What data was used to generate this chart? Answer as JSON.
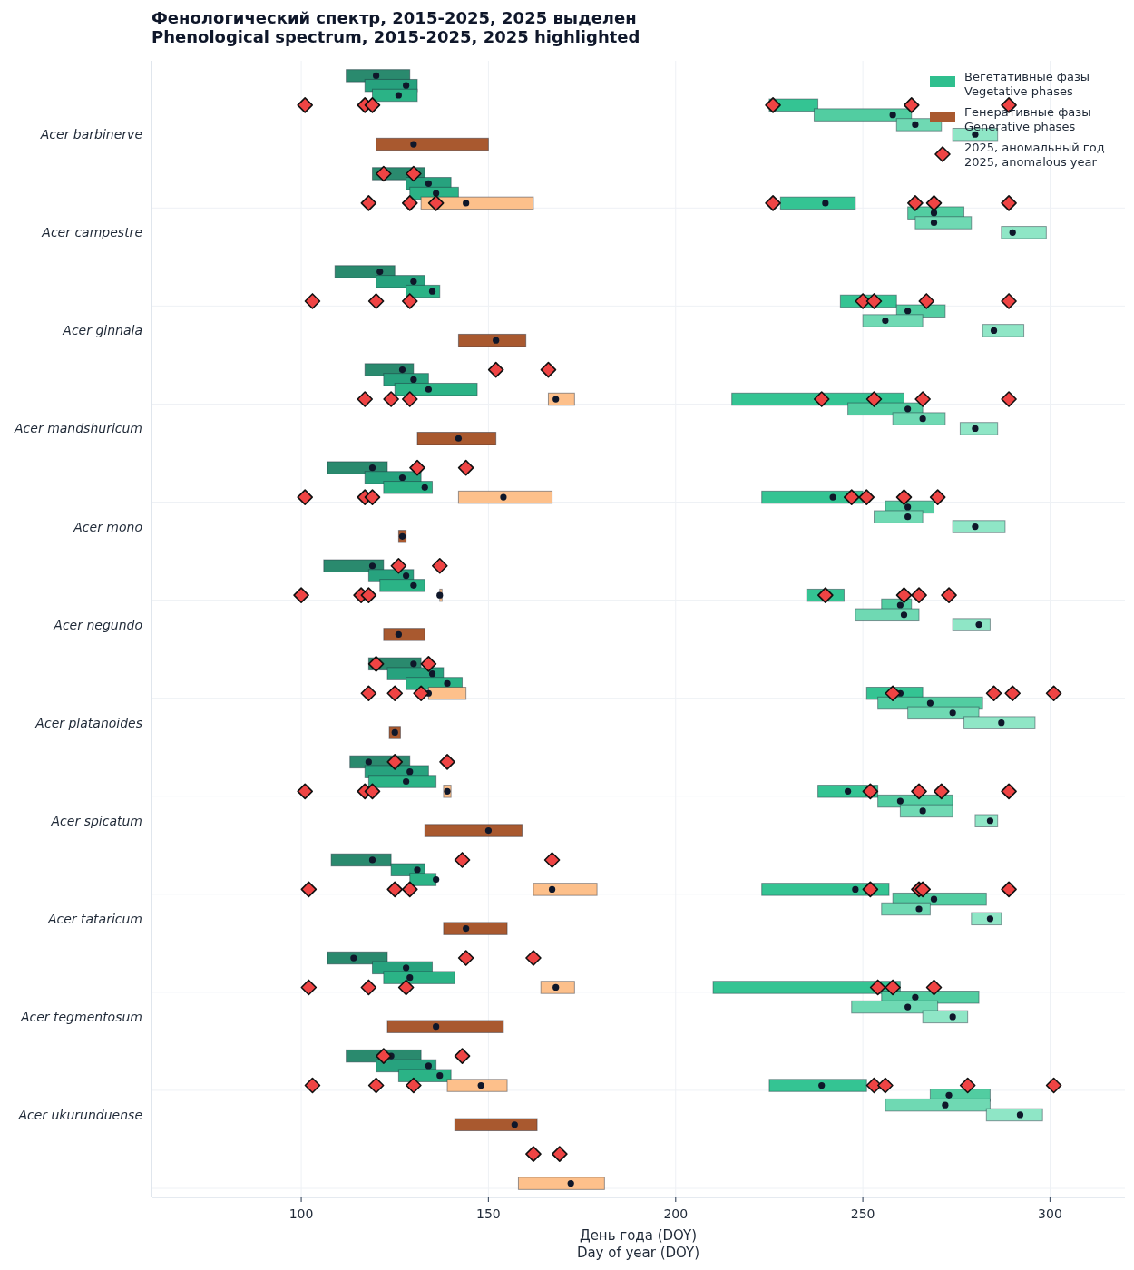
{
  "chart_data": {
    "type": "bar",
    "orientation": "horizontal",
    "title": "Фенологический спектр, 2015-2025, 2025 выделен\nPhenological spectrum, 2015-2025, 2025 highlighted",
    "xlabel": "День года (DOY)\nDay of year (DOY)",
    "xlim": [
      60,
      320
    ],
    "xticks": [
      100,
      150,
      200,
      250,
      300
    ],
    "grid": true,
    "legend": "top right",
    "categories": [
      null,
      null,
      null,
      null,
      null,
      null,
      "Acer barbinerve",
      null,
      null,
      null,
      null,
      null,
      null,
      null,
      null,
      null,
      "Acer campestre",
      null,
      null,
      null,
      null,
      null,
      null,
      null,
      null,
      null,
      "Acer ginnala",
      null,
      null,
      null,
      null,
      null,
      null,
      null,
      null,
      null,
      "Acer mandshuricum",
      null,
      null,
      null,
      null,
      null,
      null,
      null,
      null,
      null,
      "Acer mono",
      null,
      null,
      null,
      null,
      null,
      null,
      null,
      null,
      null,
      "Acer negundo",
      null,
      null,
      null,
      null,
      null,
      null,
      null,
      null,
      null,
      "Acer platanoides",
      null,
      null,
      null,
      null,
      null,
      null,
      null,
      null,
      null,
      "Acer spicatum",
      null,
      null,
      null,
      null,
      null,
      null,
      null,
      null,
      null,
      "Acer tataricum",
      null,
      null,
      null,
      null,
      null,
      null,
      null,
      null,
      null,
      "Acer tegmentosum",
      null,
      null,
      null,
      null,
      null,
      null,
      null,
      null,
      null,
      "Acer ukurunduense",
      null,
      null,
      null,
      null,
      null,
      null,
      null
    ],
    "series": [
      {
        "name": "Вегетативные фазы\nVegetative phases",
        "color": "#2fbf8e",
        "base": [
          112,
          117,
          119,
          225,
          237,
          259,
          274,
          null,
          null,
          null,
          119,
          128,
          129,
          228,
          262,
          264,
          287,
          null,
          null,
          null,
          109,
          120,
          128,
          244,
          259,
          250,
          282,
          null,
          null,
          null,
          117,
          122,
          125,
          215,
          246,
          258,
          276,
          null,
          null,
          null,
          107,
          117,
          122,
          223,
          256,
          253,
          274,
          null,
          null,
          null,
          106,
          118,
          121,
          235,
          255,
          248,
          274,
          null,
          null,
          null,
          118,
          123,
          128,
          251,
          254,
          262,
          277,
          null,
          null,
          null,
          113,
          117,
          118,
          238,
          254,
          260,
          280,
          null,
          null,
          null,
          108,
          124,
          129,
          223,
          258,
          255,
          279,
          null,
          null,
          null,
          107,
          119,
          122,
          210,
          255,
          247,
          266,
          null,
          null,
          null,
          112,
          120,
          126,
          225,
          268,
          256,
          283,
          null,
          null,
          null,
          null,
          null,
          null,
          null
        ],
        "values": [
          17,
          14,
          12,
          13,
          26,
          12,
          12,
          null,
          null,
          null,
          14,
          12,
          13,
          20,
          15,
          15,
          12,
          null,
          null,
          null,
          16,
          13,
          9,
          15,
          13,
          16,
          11,
          null,
          null,
          null,
          13,
          12,
          22,
          46,
          20,
          14,
          10,
          null,
          null,
          null,
          16,
          15,
          13,
          27,
          13,
          13,
          14,
          null,
          null,
          null,
          16,
          12,
          12,
          10,
          8,
          17,
          10,
          null,
          null,
          null,
          14,
          15,
          15,
          15,
          28,
          19,
          19,
          null,
          null,
          null,
          16,
          17,
          18,
          16,
          20,
          14,
          6,
          null,
          null,
          null,
          16,
          9,
          7,
          34,
          25,
          13,
          8,
          null,
          null,
          null,
          16,
          16,
          19,
          50,
          26,
          23,
          12,
          null,
          null,
          null,
          20,
          16,
          14,
          26,
          16,
          28,
          15,
          null,
          null,
          null,
          null,
          null,
          null,
          null
        ],
        "colors": [
          "#2a8a6e",
          "#27a27e",
          "#2bb386",
          "#34c493",
          "#52cda1",
          "#6fd9b3",
          "#8fe6c6",
          null,
          null,
          null,
          "#2a8a6e",
          "#27a27e",
          "#2bb386",
          "#34c493",
          "#52cda1",
          "#6fd9b3",
          "#8fe6c6",
          null,
          null,
          null,
          "#2a8a6e",
          "#27a27e",
          "#2bb386",
          "#34c493",
          "#52cda1",
          "#6fd9b3",
          "#8fe6c6",
          null,
          null,
          null,
          "#2a8a6e",
          "#27a27e",
          "#2bb386",
          "#34c493",
          "#52cda1",
          "#6fd9b3",
          "#8fe6c6",
          null,
          null,
          null,
          "#2a8a6e",
          "#27a27e",
          "#2bb386",
          "#34c493",
          "#52cda1",
          "#6fd9b3",
          "#8fe6c6",
          null,
          null,
          null,
          "#2a8a6e",
          "#27a27e",
          "#2bb386",
          "#34c493",
          "#52cda1",
          "#6fd9b3",
          "#8fe6c6",
          null,
          null,
          null,
          "#2a8a6e",
          "#27a27e",
          "#2bb386",
          "#34c493",
          "#52cda1",
          "#6fd9b3",
          "#8fe6c6",
          null,
          null,
          null,
          "#2a8a6e",
          "#27a27e",
          "#2bb386",
          "#34c493",
          "#52cda1",
          "#6fd9b3",
          "#8fe6c6",
          null,
          null,
          null,
          "#2a8a6e",
          "#27a27e",
          "#2bb386",
          "#34c493",
          "#52cda1",
          "#6fd9b3",
          "#8fe6c6",
          null,
          null,
          null,
          "#2a8a6e",
          "#27a27e",
          "#2bb386",
          "#34c493",
          "#52cda1",
          "#6fd9b3",
          "#8fe6c6",
          null,
          null,
          null,
          "#2a8a6e",
          "#27a27e",
          "#2bb386",
          "#34c493",
          "#52cda1",
          "#6fd9b3",
          "#8fe6c6",
          null,
          null,
          null,
          null,
          null,
          null,
          null
        ]
      },
      {
        "name": "Генеративные фазы\nGenerative phases",
        "color": "#a9592f",
        "base": [
          null,
          null,
          null,
          null,
          null,
          null,
          null,
          120,
          null,
          null,
          null,
          null,
          null,
          132,
          null,
          null,
          null,
          null,
          null,
          null,
          null,
          null,
          null,
          null,
          null,
          null,
          null,
          142,
          null,
          null,
          null,
          null,
          null,
          166,
          null,
          null,
          null,
          131,
          null,
          null,
          null,
          null,
          null,
          142,
          null,
          null,
          null,
          126,
          null,
          null,
          null,
          null,
          null,
          137,
          null,
          null,
          null,
          122,
          null,
          null,
          null,
          null,
          null,
          134,
          null,
          null,
          null,
          123.5,
          null,
          null,
          null,
          null,
          null,
          138,
          null,
          null,
          null,
          133,
          null,
          null,
          null,
          null,
          null,
          162,
          null,
          null,
          null,
          138,
          null,
          null,
          null,
          null,
          null,
          164,
          null,
          null,
          null,
          123,
          null,
          null,
          null,
          null,
          null,
          139,
          null,
          null,
          null,
          141,
          null,
          null,
          null,
          null,
          null,
          158
        ],
        "values": [
          null,
          null,
          null,
          null,
          null,
          null,
          null,
          30,
          null,
          null,
          null,
          null,
          null,
          30,
          null,
          null,
          null,
          null,
          null,
          null,
          null,
          null,
          null,
          null,
          null,
          null,
          null,
          18,
          null,
          null,
          null,
          null,
          null,
          7,
          null,
          null,
          null,
          21,
          null,
          null,
          null,
          null,
          null,
          25,
          null,
          null,
          null,
          2,
          null,
          null,
          null,
          null,
          null,
          0.6,
          null,
          null,
          null,
          11,
          null,
          null,
          null,
          null,
          null,
          10,
          null,
          null,
          null,
          3,
          null,
          null,
          null,
          null,
          null,
          2,
          null,
          null,
          null,
          26,
          null,
          null,
          null,
          null,
          null,
          17,
          null,
          null,
          null,
          17,
          null,
          null,
          null,
          null,
          null,
          9,
          null,
          null,
          null,
          31,
          null,
          null,
          null,
          null,
          null,
          16,
          null,
          null,
          null,
          22,
          null,
          null,
          null,
          null,
          null,
          23
        ],
        "colors": [
          null,
          null,
          null,
          null,
          null,
          null,
          null,
          "#a9592f",
          null,
          null,
          null,
          null,
          null,
          "#fdc08b",
          null,
          null,
          null,
          null,
          null,
          null,
          null,
          null,
          null,
          null,
          null,
          null,
          null,
          "#a9592f",
          null,
          null,
          null,
          null,
          null,
          "#fdc08b",
          null,
          null,
          null,
          "#a9592f",
          null,
          null,
          null,
          null,
          null,
          "#fdc08b",
          null,
          null,
          null,
          "#a9592f",
          null,
          null,
          null,
          null,
          null,
          "#fdc08b",
          null,
          null,
          null,
          "#a9592f",
          null,
          null,
          null,
          null,
          null,
          "#fdc08b",
          null,
          null,
          null,
          "#a9592f",
          null,
          null,
          null,
          null,
          null,
          "#fdc08b",
          null,
          null,
          null,
          "#a9592f",
          null,
          null,
          null,
          null,
          null,
          "#fdc08b",
          null,
          null,
          null,
          "#a9592f",
          null,
          null,
          null,
          null,
          null,
          "#fdc08b",
          null,
          null,
          null,
          "#a9592f",
          null,
          null,
          null,
          null,
          null,
          "#fdc08b",
          null,
          null,
          null,
          "#a9592f",
          null,
          null,
          null,
          null,
          null,
          "#fdc08b"
        ]
      },
      {
        "type": "scatter",
        "marker": "circle",
        "color": "#0f172a",
        "values": [
          120,
          128,
          126,
          null,
          258,
          264,
          280,
          null,
          null,
          null,
          null,
          134,
          136,
          240,
          269,
          269,
          290,
          null,
          null,
          null,
          121,
          130,
          135,
          null,
          262,
          256,
          285,
          null,
          null,
          null,
          127,
          130,
          134,
          null,
          262,
          266,
          280,
          null,
          null,
          null,
          119,
          127,
          133,
          242,
          262,
          262,
          280,
          null,
          null,
          null,
          119,
          128,
          130,
          null,
          260,
          261,
          281,
          null,
          null,
          null,
          130,
          135,
          139,
          260,
          268,
          274,
          287,
          null,
          null,
          null,
          118,
          129,
          128,
          246,
          260,
          266,
          284,
          null,
          null,
          null,
          119,
          131,
          136,
          248,
          269,
          265,
          284,
          null,
          null,
          null,
          114,
          128,
          129,
          null,
          264,
          262,
          274,
          null,
          null,
          null,
          124,
          134,
          137,
          239,
          273,
          272,
          292,
          null,
          null,
          null,
          null,
          null,
          null,
          null
        ]
      },
      {
        "type": "scatter",
        "marker": "circle",
        "color": "#0f172a",
        "values": [
          null,
          null,
          null,
          null,
          null,
          null,
          null,
          130,
          null,
          null,
          null,
          null,
          null,
          144,
          null,
          null,
          null,
          null,
          null,
          null,
          null,
          null,
          null,
          null,
          null,
          null,
          null,
          152,
          null,
          null,
          null,
          null,
          null,
          168,
          null,
          null,
          null,
          142,
          null,
          null,
          null,
          null,
          null,
          154,
          null,
          null,
          null,
          127,
          null,
          null,
          null,
          null,
          null,
          137,
          null,
          null,
          null,
          126,
          null,
          null,
          null,
          null,
          null,
          134,
          null,
          null,
          null,
          125,
          null,
          null,
          null,
          null,
          null,
          139,
          null,
          null,
          null,
          150,
          null,
          null,
          null,
          null,
          null,
          167,
          null,
          null,
          null,
          144,
          null,
          null,
          null,
          null,
          null,
          168,
          null,
          null,
          null,
          136,
          null,
          null,
          null,
          null,
          null,
          148,
          null,
          null,
          null,
          157,
          null,
          null,
          null,
          null,
          null,
          172
        ]
      },
      {
        "type": "scatter",
        "marker": "diamond",
        "name": "2025, аномальный год\n2025, anomalous year",
        "color": "#ef4444",
        "values": [
          null,
          null,
          null,
          101,
          null,
          null,
          null,
          null,
          null,
          null,
          122,
          null,
          null,
          118,
          null,
          null,
          null,
          null,
          null,
          null,
          null,
          null,
          null,
          103,
          null,
          null,
          null,
          null,
          null,
          null,
          152,
          null,
          null,
          117,
          null,
          null,
          null,
          null,
          null,
          null,
          131,
          null,
          null,
          101,
          null,
          null,
          null,
          null,
          null,
          null,
          126,
          null,
          null,
          100,
          null,
          null,
          null,
          null,
          null,
          null,
          120,
          null,
          null,
          118,
          null,
          null,
          null,
          null,
          null,
          null,
          125,
          null,
          null,
          101,
          null,
          null,
          null,
          null,
          null,
          null,
          143,
          null,
          null,
          102,
          null,
          null,
          null,
          null,
          null,
          null,
          144,
          null,
          null,
          102,
          null,
          null,
          null,
          null,
          null,
          null,
          122,
          null,
          null,
          103,
          null,
          null,
          null,
          null,
          null,
          null,
          162,
          null,
          null,
          null
        ]
      },
      {
        "type": "scatter",
        "marker": "diamond",
        "color": "#ef4444",
        "values": [
          null,
          null,
          null,
          117,
          null,
          null,
          null,
          null,
          null,
          null,
          130,
          null,
          null,
          129,
          null,
          null,
          null,
          null,
          null,
          null,
          null,
          null,
          null,
          120,
          null,
          null,
          null,
          null,
          null,
          null,
          166,
          null,
          null,
          124,
          null,
          null,
          null,
          null,
          null,
          null,
          144,
          null,
          null,
          117,
          null,
          null,
          null,
          null,
          null,
          null,
          137,
          null,
          null,
          116,
          null,
          null,
          null,
          null,
          null,
          null,
          134,
          null,
          null,
          125,
          null,
          null,
          null,
          null,
          null,
          null,
          139,
          null,
          null,
          117,
          null,
          null,
          null,
          null,
          null,
          null,
          167,
          null,
          null,
          125,
          null,
          null,
          null,
          null,
          null,
          null,
          162,
          null,
          null,
          118,
          null,
          null,
          null,
          null,
          null,
          null,
          143,
          null,
          null,
          120,
          null,
          null,
          null,
          null,
          null,
          null,
          169,
          null,
          null,
          null
        ]
      },
      {
        "type": "scatter",
        "marker": "diamond",
        "color": "#ef4444",
        "values": [
          null,
          null,
          null,
          119,
          null,
          null,
          null,
          null,
          null,
          null,
          null,
          null,
          null,
          136,
          null,
          null,
          null,
          null,
          null,
          null,
          null,
          null,
          null,
          129,
          null,
          null,
          null,
          null,
          null,
          null,
          null,
          null,
          null,
          129,
          null,
          null,
          null,
          null,
          null,
          null,
          null,
          null,
          null,
          119,
          null,
          null,
          null,
          null,
          null,
          null,
          null,
          null,
          null,
          118,
          null,
          null,
          null,
          null,
          null,
          null,
          null,
          null,
          null,
          132,
          null,
          null,
          null,
          null,
          null,
          null,
          null,
          null,
          null,
          119,
          null,
          null,
          null,
          null,
          null,
          null,
          null,
          null,
          null,
          129,
          null,
          null,
          null,
          null,
          null,
          null,
          null,
          null,
          null,
          128,
          null,
          null,
          null,
          null,
          null,
          null,
          null,
          null,
          null,
          130,
          null,
          null,
          null,
          null,
          null,
          null,
          null,
          null,
          null,
          null
        ]
      },
      {
        "type": "scatter",
        "marker": "diamond",
        "color": "#ef4444",
        "values": [
          null,
          null,
          null,
          226,
          null,
          null,
          null,
          null,
          null,
          null,
          null,
          null,
          null,
          226,
          null,
          null,
          null,
          null,
          null,
          null,
          null,
          null,
          null,
          250,
          null,
          null,
          null,
          null,
          null,
          null,
          null,
          null,
          null,
          239,
          null,
          null,
          null,
          null,
          null,
          null,
          null,
          null,
          null,
          247,
          null,
          null,
          null,
          null,
          null,
          null,
          null,
          null,
          null,
          240,
          null,
          null,
          null,
          null,
          null,
          null,
          null,
          null,
          null,
          258,
          null,
          null,
          null,
          null,
          null,
          null,
          null,
          null,
          null,
          252,
          null,
          null,
          null,
          null,
          null,
          null,
          null,
          null,
          null,
          252,
          null,
          null,
          null,
          null,
          null,
          null,
          null,
          null,
          null,
          254,
          null,
          null,
          null,
          null,
          null,
          null,
          null,
          null,
          null,
          253,
          null,
          null,
          null,
          null,
          null,
          null,
          null,
          null,
          null,
          null
        ]
      },
      {
        "type": "scatter",
        "marker": "diamond",
        "color": "#ef4444",
        "values": [
          null,
          null,
          null,
          263,
          null,
          null,
          null,
          null,
          null,
          null,
          null,
          null,
          null,
          264,
          null,
          null,
          null,
          null,
          null,
          null,
          null,
          null,
          null,
          253,
          null,
          null,
          null,
          null,
          null,
          null,
          null,
          null,
          null,
          253,
          null,
          null,
          null,
          null,
          null,
          null,
          null,
          null,
          null,
          251,
          null,
          null,
          null,
          null,
          null,
          null,
          null,
          null,
          null,
          261,
          null,
          null,
          null,
          null,
          null,
          null,
          null,
          null,
          null,
          285,
          null,
          null,
          null,
          null,
          null,
          null,
          null,
          null,
          null,
          265,
          null,
          null,
          null,
          null,
          null,
          null,
          null,
          null,
          null,
          265,
          null,
          null,
          null,
          null,
          null,
          null,
          null,
          null,
          null,
          258,
          null,
          null,
          null,
          null,
          null,
          null,
          null,
          null,
          null,
          256,
          null,
          null,
          null,
          null,
          null,
          null,
          null,
          null,
          null,
          null
        ]
      },
      {
        "type": "scatter",
        "marker": "diamond",
        "color": "#ef4444",
        "values": [
          null,
          null,
          null,
          289,
          null,
          null,
          null,
          null,
          null,
          null,
          null,
          null,
          null,
          269,
          null,
          null,
          null,
          null,
          null,
          null,
          null,
          null,
          null,
          267,
          null,
          null,
          null,
          null,
          null,
          null,
          null,
          null,
          null,
          266,
          null,
          null,
          null,
          null,
          null,
          null,
          null,
          null,
          null,
          261,
          null,
          null,
          null,
          null,
          null,
          null,
          null,
          null,
          null,
          265,
          null,
          null,
          null,
          null,
          null,
          null,
          null,
          null,
          null,
          290,
          null,
          null,
          null,
          null,
          null,
          null,
          null,
          null,
          null,
          271,
          null,
          null,
          null,
          null,
          null,
          null,
          null,
          null,
          null,
          266,
          null,
          null,
          null,
          null,
          null,
          null,
          null,
          null,
          null,
          269,
          null,
          null,
          null,
          null,
          null,
          null,
          null,
          null,
          null,
          278,
          null,
          null,
          null,
          null,
          null,
          null,
          null,
          null,
          null,
          null
        ]
      },
      {
        "type": "scatter",
        "marker": "diamond",
        "color": "#ef4444",
        "values": [
          null,
          null,
          null,
          null,
          null,
          null,
          null,
          null,
          null,
          null,
          null,
          null,
          null,
          289,
          null,
          null,
          null,
          null,
          null,
          null,
          null,
          null,
          null,
          289,
          null,
          null,
          null,
          null,
          null,
          null,
          null,
          null,
          null,
          289,
          null,
          null,
          null,
          null,
          null,
          null,
          null,
          null,
          null,
          270,
          null,
          null,
          null,
          null,
          null,
          null,
          null,
          null,
          null,
          273,
          null,
          null,
          null,
          null,
          null,
          null,
          null,
          null,
          null,
          301,
          null,
          null,
          null,
          null,
          null,
          null,
          null,
          null,
          null,
          289,
          null,
          null,
          null,
          null,
          null,
          null,
          null,
          null,
          null,
          289,
          null,
          null,
          null,
          null,
          null,
          null,
          null,
          null,
          null,
          null,
          null,
          null,
          null,
          null,
          null,
          null,
          null,
          null,
          null,
          301,
          null,
          null,
          null,
          null,
          null,
          null,
          null,
          null,
          null,
          null
        ]
      }
    ]
  }
}
